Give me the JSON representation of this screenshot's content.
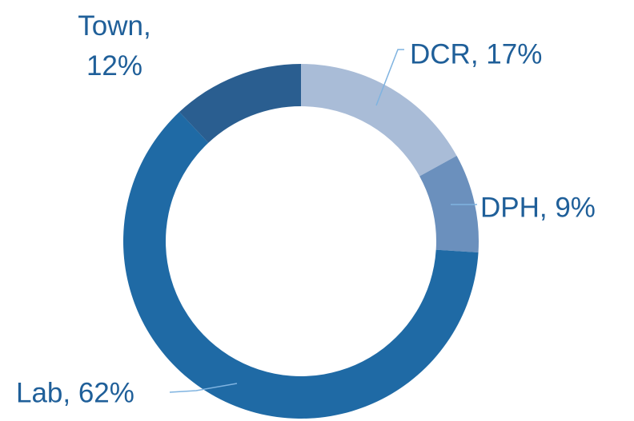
{
  "chart_data": {
    "type": "donut",
    "categories": [
      "DCR, 17%",
      "DPH, 9%",
      "Lab, 62%",
      "Town, 12%"
    ],
    "values": [
      17,
      9,
      62,
      12
    ],
    "colors": [
      "#a9bcd7",
      "#6b90bd",
      "#1f6aa5",
      "#2a5e90"
    ]
  }
}
